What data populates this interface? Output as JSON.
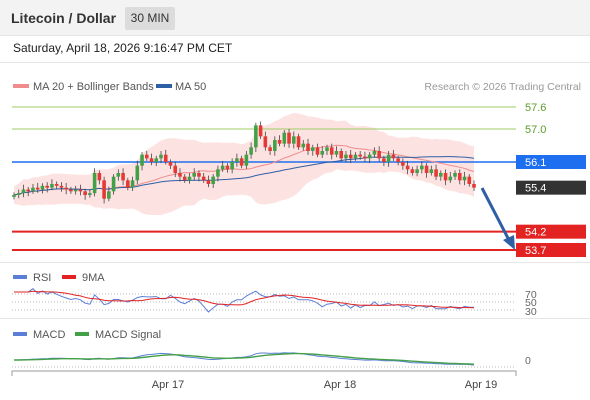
{
  "header": {
    "title": "Litecoin / Dollar",
    "timeframe": "30 MIN"
  },
  "datetime": "Saturday, April 18, 2026 9:16:47 PM CET",
  "price_panel": {
    "legend": [
      {
        "label": "MA 20 + Bollinger Bands",
        "color": "#f08c8c"
      },
      {
        "label": "MA 50",
        "color": "#2e5fa5"
      }
    ],
    "credit": "Research © 2026 Trading Central",
    "levels": [
      {
        "value": 57.6,
        "label": "57.6",
        "kind": "resistance",
        "color": "#9ccc65"
      },
      {
        "value": 57.0,
        "label": "57.0",
        "kind": "resistance",
        "color": "#9ccc65"
      },
      {
        "value": 56.1,
        "label": "56.1",
        "kind": "pivot",
        "color": "#1e6ff0"
      },
      {
        "value": 55.4,
        "label": "55.4",
        "kind": "last",
        "color": "#333333"
      },
      {
        "value": 54.2,
        "label": "54.2",
        "kind": "support",
        "color": "#e32222"
      },
      {
        "value": 53.7,
        "label": "53.7",
        "kind": "support",
        "color": "#e32222"
      }
    ]
  },
  "rsi_panel": {
    "legend": [
      {
        "label": "RSI",
        "color": "#5b7fd6"
      },
      {
        "label": "9MA",
        "color": "#e32222"
      }
    ],
    "levels": [
      "70",
      "50",
      "30"
    ]
  },
  "macd_panel": {
    "legend": [
      {
        "label": "MACD",
        "color": "#5b7fd6"
      },
      {
        "label": "MACD Signal",
        "color": "#43a047"
      }
    ],
    "zero_label": "0"
  },
  "x_axis": {
    "labels": [
      "Apr 17",
      "Apr 18",
      "Apr 19"
    ]
  },
  "colors": {
    "up": "#43a047",
    "down": "#e53935",
    "band_fill": "#fde2e2",
    "ma20": "#f08c8c",
    "ma50": "#2e5fa5",
    "forecast_arrow": "#2e5fa5"
  },
  "chart_data": {
    "type": "candlestick",
    "interval": "30 MIN",
    "x_labels": [
      "Apr 17",
      "Apr 18",
      "Apr 19"
    ],
    "closes": [
      55.2,
      55.25,
      55.35,
      55.3,
      55.4,
      55.35,
      55.45,
      55.4,
      55.5,
      55.45,
      55.4,
      55.35,
      55.3,
      55.35,
      55.3,
      55.2,
      55.25,
      55.8,
      55.6,
      55.1,
      55.3,
      55.7,
      55.8,
      55.6,
      55.4,
      55.6,
      56.0,
      56.3,
      56.2,
      56.1,
      56.2,
      56.3,
      56.1,
      56.0,
      55.8,
      55.7,
      55.6,
      55.7,
      55.8,
      55.7,
      55.6,
      55.5,
      55.7,
      55.9,
      56.0,
      55.9,
      56.1,
      56.2,
      56.0,
      56.3,
      56.5,
      57.1,
      56.8,
      56.5,
      56.4,
      56.7,
      56.6,
      56.9,
      56.6,
      56.8,
      56.5,
      56.6,
      56.4,
      56.5,
      56.3,
      56.4,
      56.5,
      56.3,
      56.4,
      56.2,
      56.3,
      56.2,
      56.3,
      56.25,
      56.2,
      56.3,
      56.4,
      56.2,
      56.1,
      56.3,
      56.2,
      56.1,
      56.0,
      55.9,
      55.8,
      55.9,
      56.0,
      55.8,
      55.9,
      55.7,
      55.8,
      55.6,
      55.7,
      55.8,
      55.6,
      55.7,
      55.5,
      55.4
    ]
  }
}
